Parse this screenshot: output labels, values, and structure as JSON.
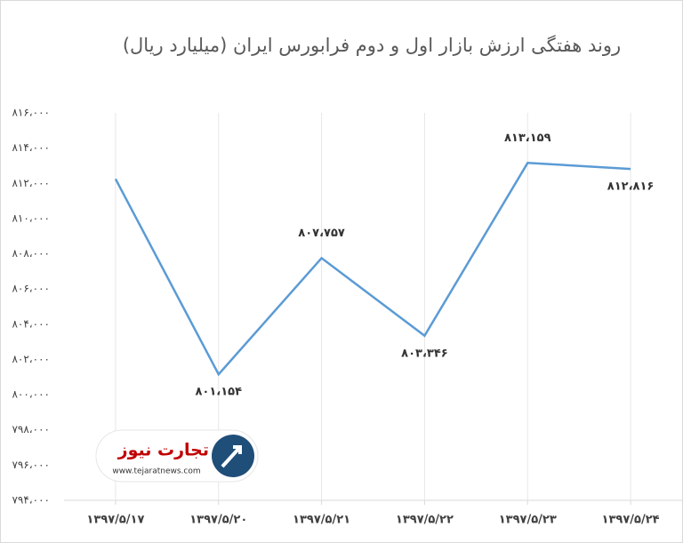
{
  "chart_data": {
    "type": "line",
    "title": "روند هفتگی ارزش بازار اول و دوم فرابورس  ایران (میلیارد ریال)",
    "categories": [
      "۱۳۹۷/۵/۱۷",
      "۱۳۹۷/۵/۲۰",
      "۱۳۹۷/۵/۲۱",
      "۱۳۹۷/۵/۲۲",
      "۱۳۹۷/۵/۲۳",
      "۱۳۹۷/۵/۲۴"
    ],
    "values": [
      812250,
      801154,
      807757,
      803346,
      813159,
      812816
    ],
    "value_labels": [
      null,
      "۸۰۱،۱۵۴",
      "۸۰۷،۷۵۷",
      "۸۰۳،۳۴۶",
      "۸۱۳،۱۵۹",
      "۸۱۲،۸۱۶"
    ],
    "color": "#5b9bd5",
    "ylim": [
      794000,
      816000
    ],
    "yticks": [
      {
        "value": 794000,
        "label": "۷۹۴،۰۰۰"
      },
      {
        "value": 796000,
        "label": "۷۹۶،۰۰۰"
      },
      {
        "value": 798000,
        "label": "۷۹۸،۰۰۰"
      },
      {
        "value": 800000,
        "label": "۸۰۰،۰۰۰"
      },
      {
        "value": 802000,
        "label": "۸۰۲،۰۰۰"
      },
      {
        "value": 804000,
        "label": "۸۰۴،۰۰۰"
      },
      {
        "value": 806000,
        "label": "۸۰۶،۰۰۰"
      },
      {
        "value": 808000,
        "label": "۸۰۸،۰۰۰"
      },
      {
        "value": 810000,
        "label": "۸۱۰،۰۰۰"
      },
      {
        "value": 812000,
        "label": "۸۱۲،۰۰۰"
      },
      {
        "value": 814000,
        "label": "۸۱۴،۰۰۰"
      },
      {
        "value": 816000,
        "label": "۸۱۶،۰۰۰"
      }
    ],
    "grid": true
  },
  "logo": {
    "name": "تجارت نیوز",
    "url": "www.tejaratnews.com"
  }
}
